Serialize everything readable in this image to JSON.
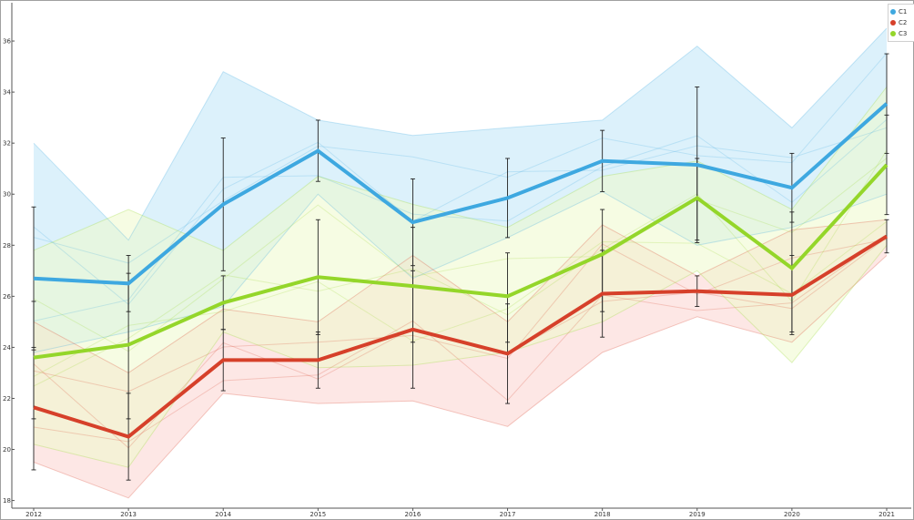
{
  "chart_data": {
    "type": "line",
    "title": "",
    "xlabel": "",
    "ylabel": "",
    "categories": [
      "2012",
      "2013",
      "2014",
      "2015",
      "2016",
      "2017",
      "2018",
      "2019",
      "2020",
      "2021"
    ],
    "ylim": [
      17.7,
      37.5
    ],
    "yticks": [
      "18",
      "20",
      "22",
      "24",
      "26",
      "28",
      "30",
      "32",
      "34",
      "36"
    ],
    "grid": false,
    "legend_position": "top-right",
    "series": [
      {
        "name": "C1",
        "color": "#3ea8e0",
        "band_color": "#bfe6f7",
        "values": [
          26.7,
          26.5,
          29.6,
          31.7,
          28.9,
          29.85,
          31.3,
          31.15,
          30.25,
          33.55
        ],
        "band_low": [
          23.8,
          24.6,
          25.6,
          30.0,
          26.7,
          28.3,
          30.1,
          28.0,
          28.7,
          30.0
        ],
        "band_high": [
          32.0,
          28.2,
          34.8,
          32.9,
          32.3,
          32.6,
          32.9,
          35.8,
          32.6,
          36.5
        ],
        "error_low": [
          23.9,
          25.4,
          27.0,
          30.5,
          27.2,
          28.3,
          30.1,
          28.1,
          28.9,
          31.6
        ],
        "error_high": [
          29.5,
          27.6,
          32.2,
          32.9,
          30.6,
          31.4,
          32.5,
          34.2,
          31.6,
          35.5
        ]
      },
      {
        "name": "C2",
        "color": "#d6402a",
        "band_color": "#fbd4d0",
        "values": [
          21.65,
          20.5,
          23.5,
          23.5,
          24.7,
          23.75,
          26.1,
          26.2,
          26.05,
          28.35
        ],
        "band_low": [
          19.5,
          18.1,
          22.2,
          21.8,
          21.9,
          20.9,
          23.8,
          25.2,
          24.2,
          27.6
        ],
        "band_high": [
          25.0,
          23.0,
          25.5,
          25.0,
          27.6,
          25.0,
          28.8,
          26.8,
          28.6,
          29.0
        ],
        "error_low": [
          19.2,
          18.8,
          22.3,
          22.4,
          22.4,
          21.8,
          24.4,
          25.6,
          24.5,
          27.7
        ],
        "error_high": [
          24.0,
          22.2,
          24.7,
          24.6,
          27.0,
          25.7,
          27.8,
          26.8,
          27.6,
          29.0
        ]
      },
      {
        "name": "C3",
        "color": "#94d62a",
        "band_color": "#eef9cc",
        "values": [
          23.6,
          24.1,
          25.75,
          26.75,
          26.4,
          26.0,
          27.65,
          29.85,
          27.1,
          31.15
        ],
        "band_low": [
          20.2,
          19.3,
          24.6,
          23.2,
          23.3,
          23.8,
          25.0,
          27.0,
          23.4,
          28.0
        ],
        "band_high": [
          27.8,
          29.4,
          27.8,
          30.7,
          29.6,
          28.7,
          30.7,
          31.3,
          29.4,
          34.2
        ],
        "error_low": [
          21.2,
          21.2,
          24.7,
          24.5,
          24.2,
          24.2,
          25.4,
          28.2,
          24.6,
          29.2
        ],
        "error_high": [
          25.8,
          26.9,
          26.8,
          29.0,
          28.7,
          27.7,
          29.4,
          31.4,
          29.3,
          33.1
        ]
      }
    ]
  }
}
